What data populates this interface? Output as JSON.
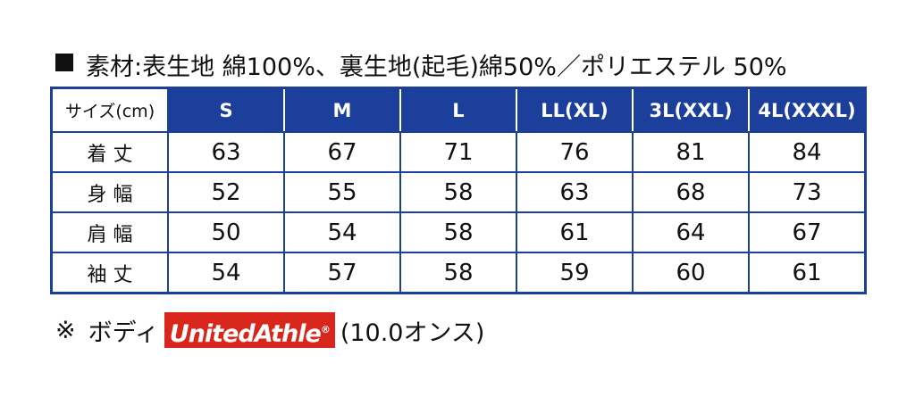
{
  "header": {
    "material": "素材:表生地 綿100%、裏生地(起毛)綿50%／ポリエステル 50%"
  },
  "table": {
    "columns": [
      "サイズ(cm)",
      "S",
      "M",
      "L",
      "LL(XL)",
      "3L(XXL)",
      "4L(XXXL)"
    ],
    "rows": [
      [
        "着 丈",
        63,
        67,
        71,
        76,
        81,
        84
      ],
      [
        "身 幅",
        52,
        55,
        58,
        63,
        68,
        73
      ],
      [
        "肩 幅",
        50,
        54,
        58,
        61,
        64,
        67
      ],
      [
        "袖 丈",
        54,
        57,
        58,
        59,
        60,
        61
      ]
    ]
  },
  "footer": {
    "mark": "※",
    "label": "ボディ",
    "brand": "UnitedAthle",
    "brand_symbol": "®",
    "weight": "(10.0オンス)"
  }
}
